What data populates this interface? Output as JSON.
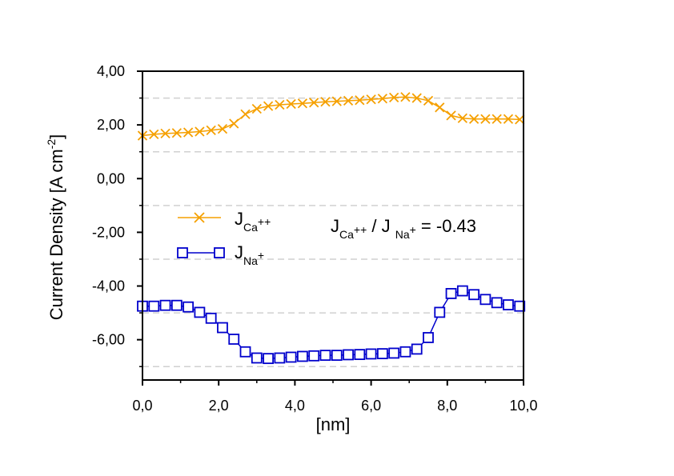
{
  "chart_data": {
    "type": "line",
    "title": "",
    "xlabel": "[nm]",
    "ylabel_main": "Current Density [A cm",
    "ylabel_sup": "-2",
    "ylabel_close": "]",
    "xlim": [
      0,
      10
    ],
    "ylim": [
      -7.5,
      4
    ],
    "xticks": [
      0,
      2,
      4,
      6,
      8,
      10
    ],
    "xtick_labels": [
      "0,0",
      "2,0",
      "4,0",
      "6,0",
      "8,0",
      "10,0"
    ],
    "yticks": [
      4,
      2,
      0,
      -2,
      -4,
      -6
    ],
    "ytick_labels": [
      "4,00",
      "2,00",
      "0,00",
      "-2,00",
      "-4,00",
      "-6,00"
    ],
    "gridlines_y": [
      3,
      1,
      -1,
      -3,
      -5,
      -7
    ],
    "grid": "dashed horizontal",
    "legend_position": "center-left",
    "ratio_annotation": {
      "j": "J",
      "ca_sub": "Ca",
      "ca_sup": "++",
      "slash": " / J ",
      "na_sub": "Na",
      "na_sup": "+",
      "value": " = -0.43"
    },
    "series": [
      {
        "name": "J_Ca++",
        "legend_main": "J",
        "legend_sub": "Ca",
        "legend_sup": "++",
        "color": "#f5a000",
        "marker": "x",
        "x": [
          0.0,
          0.3,
          0.6,
          0.9,
          1.2,
          1.5,
          1.8,
          2.1,
          2.4,
          2.7,
          3.0,
          3.3,
          3.6,
          3.9,
          4.2,
          4.5,
          4.8,
          5.1,
          5.4,
          5.7,
          6.0,
          6.3,
          6.6,
          6.9,
          7.2,
          7.5,
          7.8,
          8.1,
          8.4,
          8.7,
          9.0,
          9.3,
          9.6,
          9.9
        ],
        "values": [
          1.6,
          1.65,
          1.68,
          1.7,
          1.72,
          1.75,
          1.8,
          1.85,
          2.05,
          2.4,
          2.6,
          2.7,
          2.75,
          2.78,
          2.8,
          2.83,
          2.86,
          2.88,
          2.9,
          2.92,
          2.95,
          2.98,
          3.02,
          3.04,
          3.0,
          2.9,
          2.65,
          2.35,
          2.25,
          2.22,
          2.22,
          2.22,
          2.22,
          2.2
        ]
      },
      {
        "name": "J_Na+",
        "legend_main": "J",
        "legend_sub": "Na",
        "legend_sup": "+",
        "color": "#0000cc",
        "marker": "square",
        "x": [
          0.0,
          0.3,
          0.6,
          0.9,
          1.2,
          1.5,
          1.8,
          2.1,
          2.4,
          2.7,
          3.0,
          3.3,
          3.6,
          3.9,
          4.2,
          4.5,
          4.8,
          5.1,
          5.4,
          5.7,
          6.0,
          6.3,
          6.6,
          6.9,
          7.2,
          7.5,
          7.8,
          8.1,
          8.4,
          8.7,
          9.0,
          9.3,
          9.6,
          9.9
        ],
        "values": [
          -4.75,
          -4.75,
          -4.72,
          -4.72,
          -4.78,
          -4.98,
          -5.2,
          -5.55,
          -5.98,
          -6.45,
          -6.68,
          -6.7,
          -6.68,
          -6.65,
          -6.62,
          -6.6,
          -6.58,
          -6.58,
          -6.56,
          -6.55,
          -6.53,
          -6.52,
          -6.5,
          -6.45,
          -6.35,
          -5.92,
          -4.98,
          -4.28,
          -4.18,
          -4.32,
          -4.5,
          -4.62,
          -4.7,
          -4.75
        ]
      }
    ]
  }
}
